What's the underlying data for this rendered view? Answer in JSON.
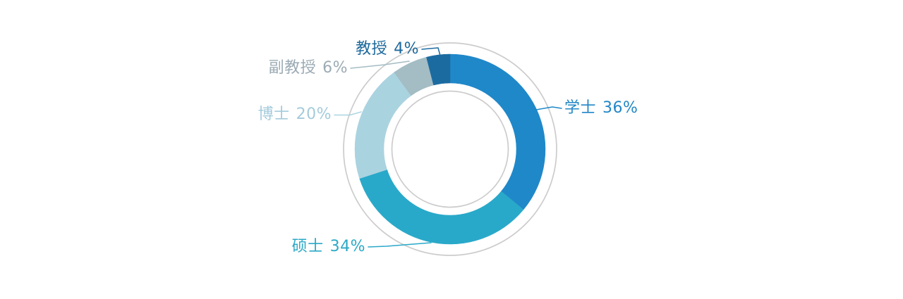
{
  "canvas": {
    "background": "#ffffff"
  },
  "chart_data": {
    "type": "pie",
    "donut": true,
    "title": "",
    "start_angle_deg": 0,
    "direction": "clockwise-from-top",
    "inner_radius_ratio": 0.7,
    "guide_circles": {
      "color": "#cccccc",
      "count": 2
    },
    "unit": "%",
    "slices": [
      {
        "name": "学士",
        "value": 36,
        "percent_label": "36%",
        "color": "#1f88c9",
        "label_color": "#2287c6"
      },
      {
        "name": "硕士",
        "value": 34,
        "percent_label": "34%",
        "color": "#29a9c9",
        "label_color": "#2ba9c7"
      },
      {
        "name": "博士",
        "value": 20,
        "percent_label": "20%",
        "color": "#aad3e0",
        "label_color": "#a4cbdc"
      },
      {
        "name": "副教授",
        "value": 6,
        "percent_label": "6%",
        "color": "#a4bcc4",
        "label_color": "#9cabb4"
      },
      {
        "name": "教授",
        "value": 4,
        "percent_label": "4%",
        "color": "#1c6ba0",
        "label_color": "#1e699c"
      }
    ]
  }
}
